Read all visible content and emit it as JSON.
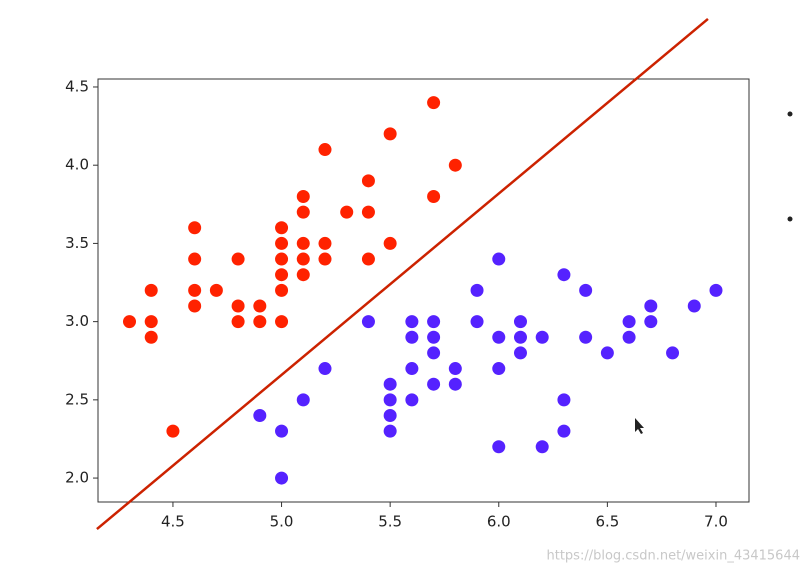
{
  "chart_data": {
    "type": "scatter",
    "xlim": [
      4.155,
      7.152
    ],
    "ylim": [
      1.847,
      4.551
    ],
    "xticks": [
      4.5,
      {
        "value": 5.0,
        "label": "5.0"
      },
      5.5,
      {
        "value": 6.0,
        "label": "6.0"
      },
      6.5,
      {
        "value": 7.0,
        "label": "7.0"
      }
    ],
    "yticks": [
      {
        "value": 2.0,
        "label": "2.0"
      },
      2.5,
      {
        "value": 3.0,
        "label": "3.0"
      },
      3.5,
      {
        "value": 4.0,
        "label": "4.0"
      },
      4.5
    ],
    "series": [
      {
        "color": "#ff2200",
        "x": [
          4.3,
          4.4,
          4.4,
          4.4,
          4.5,
          4.6,
          4.6,
          4.6,
          4.6,
          4.7,
          4.8,
          4.8,
          4.8,
          4.9,
          4.9,
          5.0,
          5.0,
          5.0,
          5.0,
          5.0,
          5.0,
          5.1,
          5.1,
          5.1,
          5.1,
          5.1,
          5.2,
          5.2,
          5.2,
          5.3,
          5.4,
          5.4,
          5.4,
          5.5,
          5.5,
          5.7,
          5.7,
          5.8
        ],
        "y": [
          3.0,
          3.2,
          3.0,
          2.9,
          2.3,
          3.6,
          3.4,
          3.2,
          3.1,
          3.2,
          3.4,
          3.1,
          3.0,
          3.1,
          3.0,
          3.6,
          3.5,
          3.4,
          3.3,
          3.2,
          3.0,
          3.8,
          3.7,
          3.5,
          3.4,
          3.3,
          4.1,
          3.5,
          3.4,
          3.7,
          3.9,
          3.7,
          3.4,
          4.2,
          3.5,
          4.4,
          3.8,
          4.0
        ]
      },
      {
        "color": "#5522ff",
        "x": [
          4.9,
          5.0,
          5.0,
          5.1,
          5.2,
          5.4,
          5.5,
          5.5,
          5.5,
          5.5,
          5.6,
          5.6,
          5.6,
          5.6,
          5.7,
          5.7,
          5.7,
          5.7,
          5.8,
          5.8,
          5.9,
          5.9,
          6.0,
          6.0,
          6.0,
          6.0,
          6.1,
          6.1,
          6.1,
          6.2,
          6.2,
          6.3,
          6.3,
          6.3,
          6.4,
          6.4,
          6.5,
          6.6,
          6.6,
          6.7,
          6.7,
          6.8,
          6.9,
          7.0
        ],
        "y": [
          2.4,
          2.3,
          2.0,
          2.5,
          2.7,
          3.0,
          2.6,
          2.5,
          2.4,
          2.3,
          3.0,
          2.9,
          2.7,
          2.5,
          3.0,
          2.9,
          2.8,
          2.6,
          2.7,
          2.6,
          3.2,
          3.0,
          3.4,
          2.9,
          2.7,
          2.2,
          3.0,
          2.9,
          2.8,
          2.9,
          2.2,
          3.3,
          2.5,
          2.3,
          3.2,
          2.9,
          2.8,
          3.0,
          2.9,
          3.1,
          3.0,
          2.8,
          3.1,
          3.2
        ]
      },
      {
        "type": "line",
        "color": "#cc2200",
        "x": [
          4.15,
          6.963
        ],
        "y": [
          1.674,
          4.935
        ]
      }
    ],
    "watermark": "https://blog.csdn.net/weixin_43415644"
  }
}
